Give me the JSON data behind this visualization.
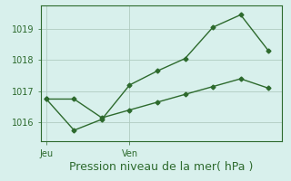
{
  "line1_x": [
    0,
    1,
    2,
    3,
    4,
    5,
    6,
    7,
    8
  ],
  "line1_y": [
    1016.75,
    1015.75,
    1016.1,
    1017.2,
    1017.65,
    1018.05,
    1019.05,
    1019.45,
    1018.3
  ],
  "line2_x": [
    0,
    1,
    2,
    3,
    4,
    5,
    6,
    7,
    8
  ],
  "line2_y": [
    1016.75,
    1016.75,
    1016.15,
    1016.4,
    1016.65,
    1016.9,
    1017.15,
    1017.4,
    1017.1
  ],
  "color": "#2d6a2d",
  "background": "#d8f0ec",
  "grid_color": "#b0ccc0",
  "xlabel": "Pression niveau de la mer( hPa )",
  "xlabel_fontsize": 9,
  "xtick_positions": [
    0,
    3
  ],
  "xtick_labels": [
    "Jeu",
    "Ven"
  ],
  "ylim": [
    1015.4,
    1019.75
  ],
  "yticks": [
    1016,
    1017,
    1018,
    1019
  ],
  "ytick_fontsize": 7,
  "xtick_fontsize": 7,
  "marker": "D",
  "markersize": 2.5,
  "linewidth": 1.0,
  "xlim": [
    -0.2,
    8.5
  ]
}
